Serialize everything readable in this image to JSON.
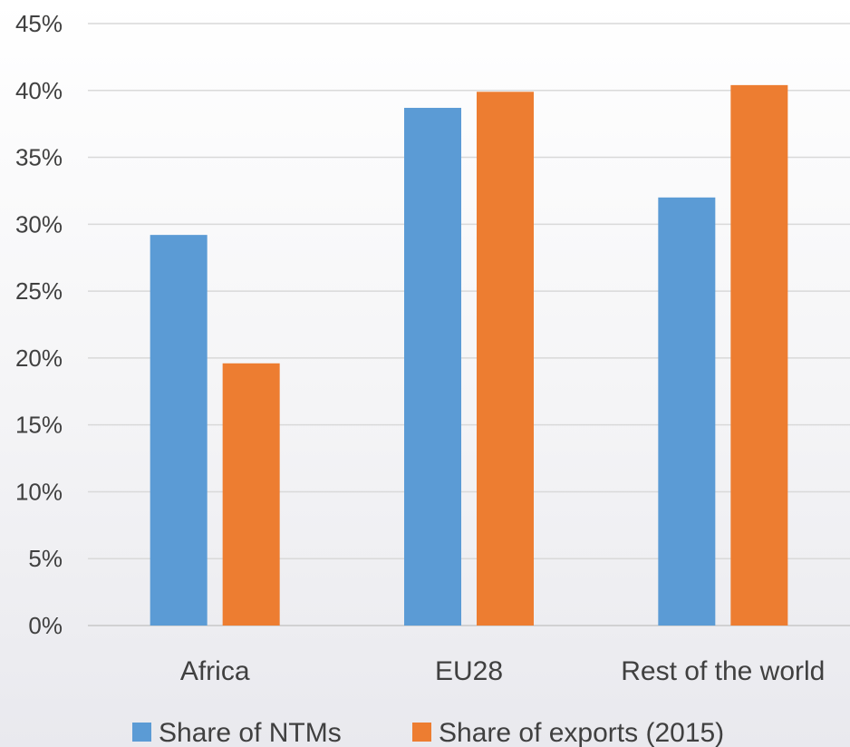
{
  "chart_data": {
    "type": "bar",
    "categories": [
      "Africa",
      "EU28",
      "Rest of the world"
    ],
    "series": [
      {
        "name": "Share of NTMs",
        "values": [
          29.2,
          38.7,
          32.0
        ],
        "color": "#5b9bd5"
      },
      {
        "name": "Share of exports (2015)",
        "values": [
          19.6,
          39.9,
          40.4
        ],
        "color": "#ed7d31"
      }
    ],
    "ylim": [
      0,
      45
    ],
    "yticks": [
      "0%",
      "5%",
      "10%",
      "15%",
      "20%",
      "25%",
      "30%",
      "35%",
      "40%",
      "45%"
    ],
    "grid": true,
    "legend_position": "bottom"
  }
}
